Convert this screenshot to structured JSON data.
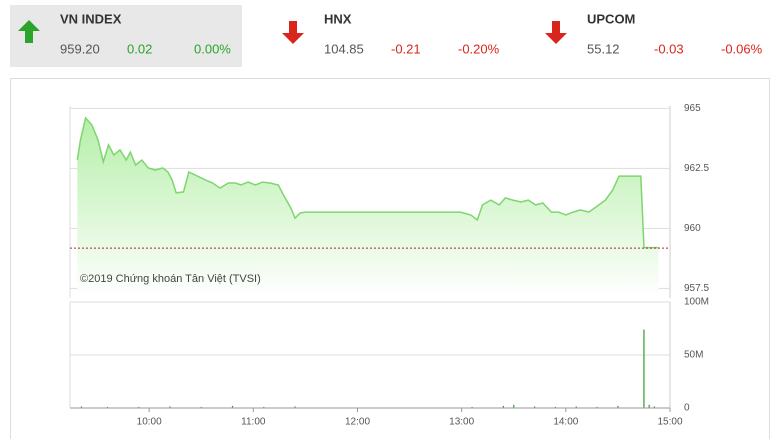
{
  "indices": [
    {
      "name": "VN INDEX",
      "price": "959.20",
      "change": "0.02",
      "percent": "0.00%",
      "direction": "up",
      "color": "#2aa52a",
      "highlight": true
    },
    {
      "name": "HNX",
      "price": "104.85",
      "change": "-0.21",
      "percent": "-0.20%",
      "direction": "down",
      "color": "#d9251c",
      "highlight": false
    },
    {
      "name": "UPCOM",
      "price": "55.12",
      "change": "-0.03",
      "percent": "-0.06%",
      "direction": "down",
      "color": "#d9251c",
      "highlight": false
    }
  ],
  "watermark": "©2019 Chứng khoán Tân Việt (TVSI)",
  "chart_data": [
    {
      "type": "area",
      "x": [
        9.31,
        9.34,
        9.39,
        9.45,
        9.51,
        9.56,
        9.61,
        9.66,
        9.72,
        9.78,
        9.82,
        9.87,
        9.93,
        9.99,
        10.06,
        10.13,
        10.18,
        10.22,
        10.26,
        10.33,
        10.38,
        10.44,
        10.54,
        10.61,
        10.68,
        10.76,
        10.83,
        10.88,
        10.95,
        11.02,
        11.09,
        11.16,
        11.24,
        11.29,
        11.36,
        11.4,
        11.45,
        11.5,
        12.99,
        13.09,
        13.15,
        13.2,
        13.28,
        13.36,
        13.42,
        13.49,
        13.57,
        13.64,
        13.71,
        13.78,
        13.86,
        13.93,
        14.0,
        14.07,
        14.14,
        14.22,
        14.29,
        14.38,
        14.45,
        14.51,
        14.72,
        14.75,
        14.89
      ],
      "values": [
        962.85,
        963.68,
        964.6,
        964.31,
        963.68,
        962.77,
        963.48,
        963.06,
        963.27,
        962.85,
        963.18,
        962.64,
        962.85,
        962.52,
        962.43,
        962.52,
        962.35,
        962.02,
        961.48,
        961.52,
        962.35,
        962.23,
        962.02,
        961.89,
        961.68,
        961.89,
        961.89,
        961.81,
        961.93,
        961.81,
        961.93,
        961.89,
        961.81,
        961.39,
        960.85,
        960.43,
        960.64,
        960.68,
        960.68,
        960.56,
        960.35,
        960.98,
        961.18,
        960.98,
        961.27,
        961.18,
        961.1,
        961.18,
        960.98,
        961.06,
        960.68,
        960.68,
        960.56,
        960.68,
        960.77,
        960.68,
        960.89,
        961.18,
        961.6,
        962.18,
        962.18,
        959.2,
        959.2
      ],
      "reference": 959.18,
      "color": "#7fd56f",
      "fill": "#c3f2b8",
      "reference_color": "#a52a2a",
      "xlim": [
        9.24,
        15
      ],
      "ylim": [
        957.1,
        965.1
      ],
      "yticks": [
        965,
        962.5,
        960,
        957.5
      ],
      "grid": true
    },
    {
      "type": "bar",
      "x": [
        9.35,
        9.6,
        9.9,
        10.2,
        10.5,
        10.8,
        11.1,
        11.4,
        13.1,
        13.4,
        13.5,
        13.7,
        13.9,
        14.1,
        14.3,
        14.5,
        14.75,
        14.8,
        14.85
      ],
      "values": [
        1.5,
        1,
        1,
        1.5,
        1,
        2,
        1,
        1.5,
        1,
        2,
        3,
        1.5,
        1,
        1.5,
        1,
        2,
        74,
        3,
        1.5
      ],
      "color": "#2e9e2e",
      "xlim": [
        9.24,
        15
      ],
      "ylim": [
        0,
        100
      ],
      "yticks": [
        {
          "value": 100,
          "label": "100M"
        },
        {
          "value": 50,
          "label": "50M"
        },
        0
      ],
      "xticks": [
        {
          "value": 10,
          "label": "10:00"
        },
        {
          "value": 11,
          "label": "11:00"
        },
        {
          "value": 12,
          "label": "12:00"
        },
        {
          "value": 13,
          "label": "13:00"
        },
        {
          "value": 14,
          "label": "14:00"
        },
        {
          "value": 15,
          "label": "15:00"
        }
      ],
      "grid": true
    }
  ]
}
